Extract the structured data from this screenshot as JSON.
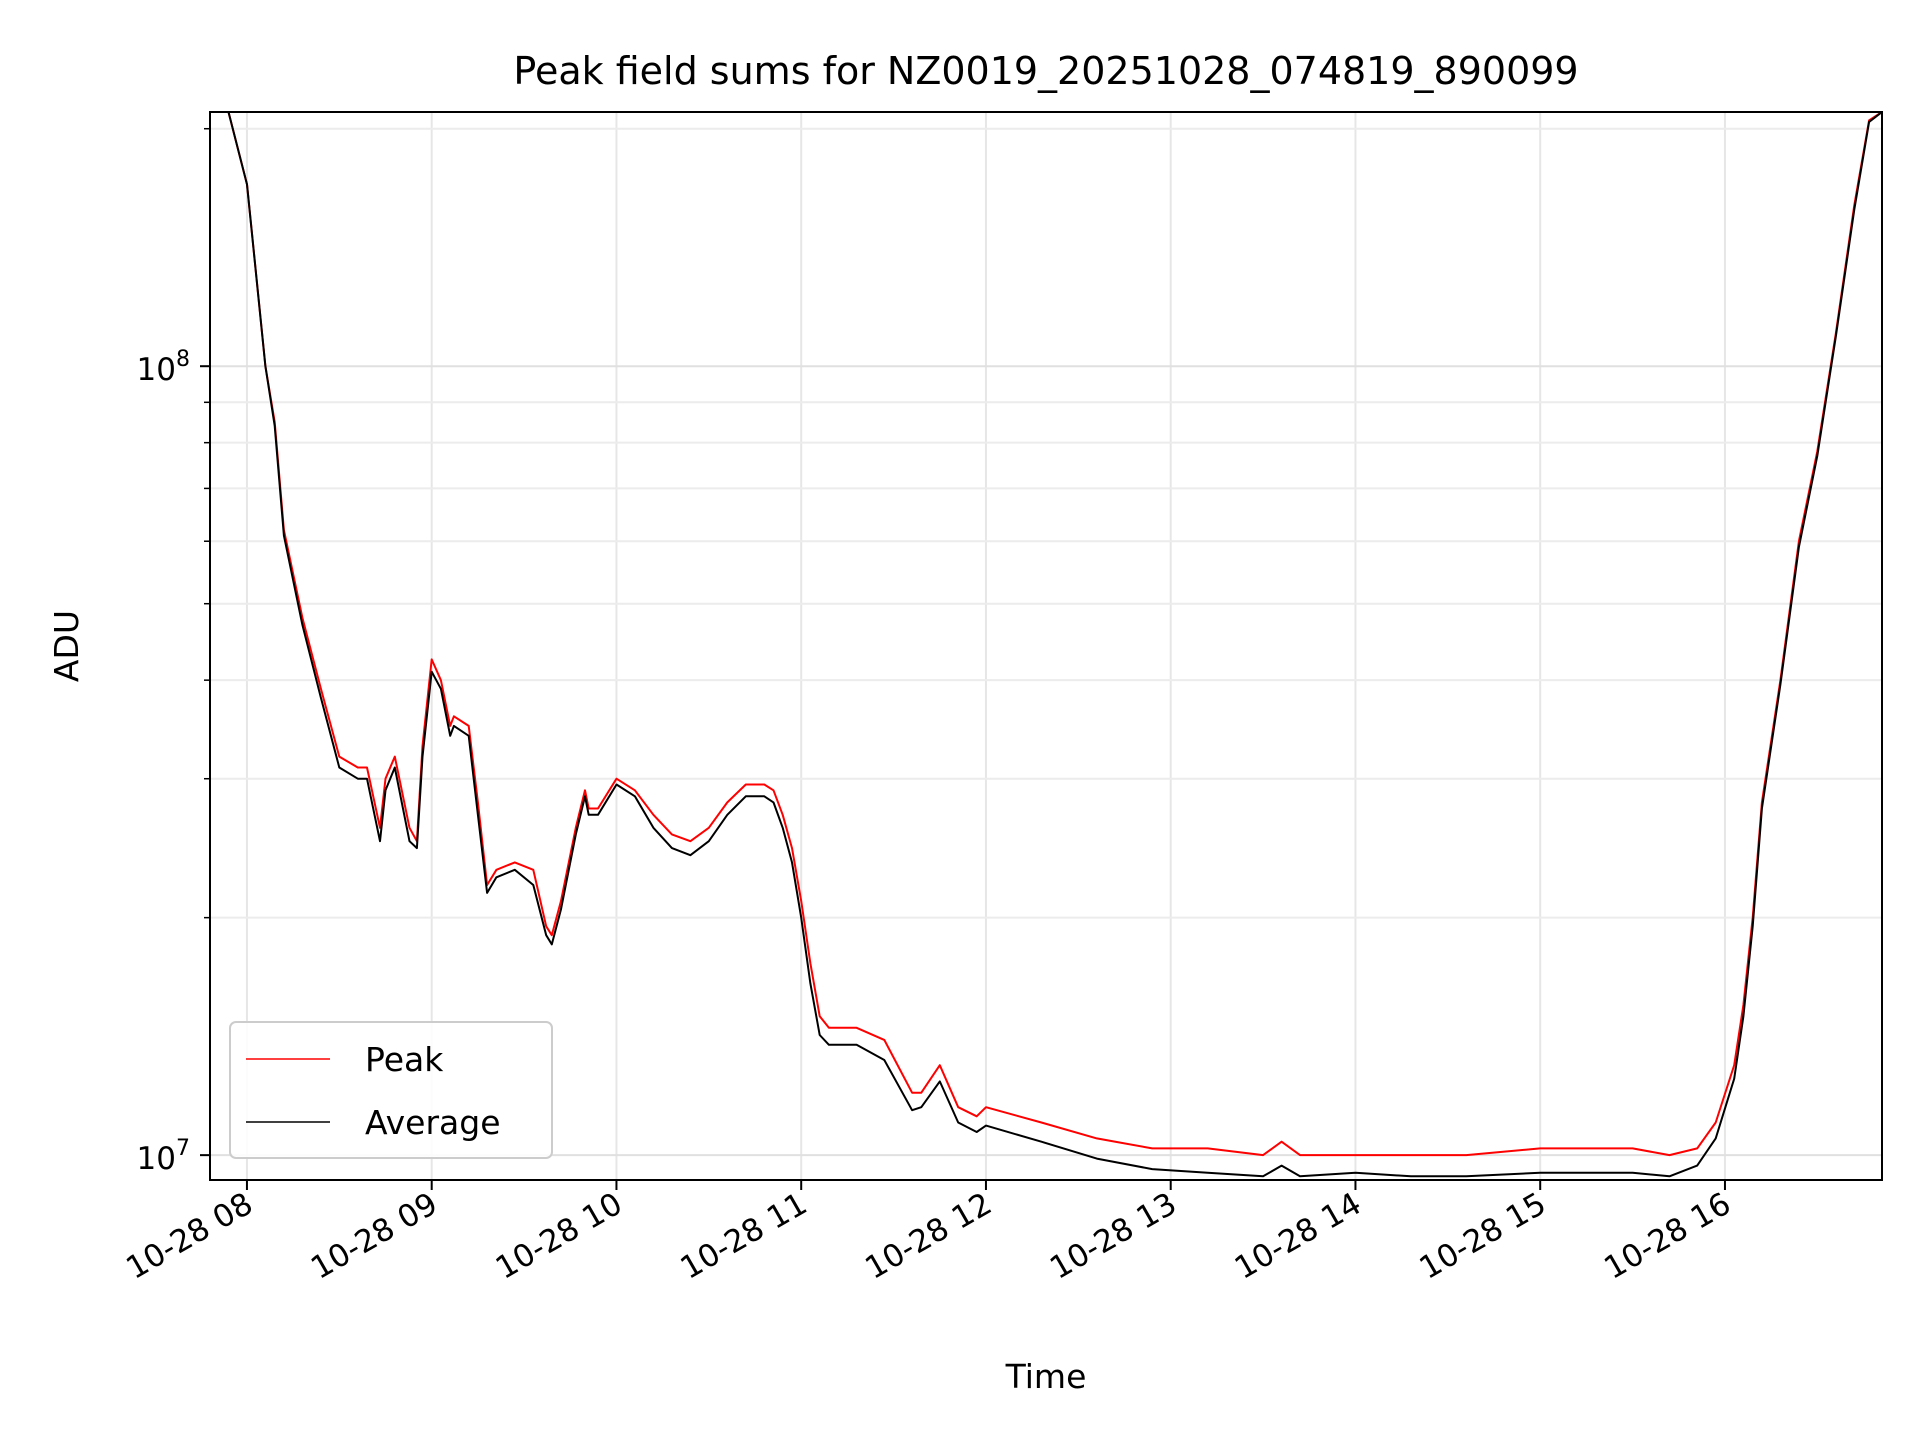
{
  "chart_data": {
    "type": "line",
    "title": "Peak field sums for NZ0019_20251028_074819_890099",
    "xlabel": "Time",
    "ylabel": "ADU",
    "yscale": "log",
    "ylim": [
      9300000.0,
      210000000.0
    ],
    "xlim_hours": [
      7.8,
      16.85
    ],
    "grid": true,
    "legend_position": "lower-left",
    "x_ticks": [
      {
        "hour": 8,
        "label": "10-28 08"
      },
      {
        "hour": 9,
        "label": "10-28 09"
      },
      {
        "hour": 10,
        "label": "10-28 10"
      },
      {
        "hour": 11,
        "label": "10-28 11"
      },
      {
        "hour": 12,
        "label": "10-28 12"
      },
      {
        "hour": 13,
        "label": "10-28 13"
      },
      {
        "hour": 14,
        "label": "10-28 14"
      },
      {
        "hour": 15,
        "label": "10-28 15"
      },
      {
        "hour": 16,
        "label": "10-28 16"
      }
    ],
    "y_major_ticks": [
      {
        "value": 10000000.0,
        "base": "10",
        "exp": "7"
      },
      {
        "value": 100000000.0,
        "base": "10",
        "exp": "8"
      }
    ],
    "x_hours": [
      7.8,
      7.9,
      8.0,
      8.1,
      8.15,
      8.2,
      8.3,
      8.4,
      8.5,
      8.6,
      8.65,
      8.72,
      8.75,
      8.8,
      8.88,
      8.92,
      8.95,
      9.0,
      9.05,
      9.1,
      9.12,
      9.2,
      9.25,
      9.3,
      9.35,
      9.45,
      9.55,
      9.62,
      9.65,
      9.7,
      9.78,
      9.83,
      9.85,
      9.9,
      10.0,
      10.1,
      10.2,
      10.3,
      10.4,
      10.5,
      10.6,
      10.7,
      10.8,
      10.85,
      10.9,
      10.95,
      11.0,
      11.05,
      11.1,
      11.15,
      11.3,
      11.45,
      11.6,
      11.65,
      11.75,
      11.85,
      11.95,
      12.0,
      12.3,
      12.6,
      12.9,
      13.2,
      13.5,
      13.6,
      13.7,
      14.0,
      14.3,
      14.6,
      15.0,
      15.3,
      15.5,
      15.7,
      15.85,
      15.95,
      16.05,
      16.1,
      16.15,
      16.2,
      16.3,
      16.4,
      16.5,
      16.6,
      16.7,
      16.78,
      16.85
    ],
    "series": [
      {
        "name": "Peak",
        "color": "#ff0000",
        "values": [
          210000000.0,
          210000000.0,
          170000000.0,
          100000000.0,
          85000000.0,
          62000000.0,
          48000000.0,
          39000000.0,
          32000000.0,
          31000000.0,
          31000000.0,
          26000000.0,
          30000000.0,
          32000000.0,
          26000000.0,
          25000000.0,
          33000000.0,
          42500000.0,
          40000000.0,
          35000000.0,
          36000000.0,
          35000000.0,
          28000000.0,
          22000000.0,
          23000000.0,
          23500000.0,
          23000000.0,
          19500000.0,
          19000000.0,
          21000000.0,
          26000000.0,
          29000000.0,
          27500000.0,
          27500000.0,
          30000000.0,
          29000000.0,
          27000000.0,
          25500000.0,
          25000000.0,
          26000000.0,
          28000000.0,
          29500000.0,
          29500000.0,
          29000000.0,
          27000000.0,
          24500000.0,
          21000000.0,
          17500000.0,
          15000000.0,
          14500000.0,
          14500000.0,
          14000000.0,
          12000000.0,
          12000000.0,
          13000000.0,
          11500000.0,
          11200000.0,
          11500000.0,
          11000000.0,
          10500000.0,
          10200000.0,
          10200000.0,
          10000000.0,
          10400000.0,
          10000000.0,
          10000000.0,
          10000000.0,
          10000000.0,
          10200000.0,
          10200000.0,
          10200000.0,
          10000000.0,
          10200000.0,
          11000000.0,
          13000000.0,
          15500000.0,
          20000000.0,
          28000000.0,
          40000000.0,
          60000000.0,
          78000000.0,
          110000000.0,
          160000000.0,
          205000000.0,
          210000000.0
        ]
      },
      {
        "name": "Average",
        "color": "#000000",
        "values": [
          210000000.0,
          210000000.0,
          170000000.0,
          100000000.0,
          84000000.0,
          61000000.0,
          47000000.0,
          38000000.0,
          31000000.0,
          30000000.0,
          30000000.0,
          25000000.0,
          29000000.0,
          31000000.0,
          25000000.0,
          24500000.0,
          32000000.0,
          41000000.0,
          39000000.0,
          34000000.0,
          35000000.0,
          34000000.0,
          27000000.0,
          21500000.0,
          22500000.0,
          23000000.0,
          22000000.0,
          19000000.0,
          18500000.0,
          20500000.0,
          25500000.0,
          28500000.0,
          27000000.0,
          27000000.0,
          29500000.0,
          28500000.0,
          26000000.0,
          24500000.0,
          24000000.0,
          25000000.0,
          27000000.0,
          28500000.0,
          28500000.0,
          28000000.0,
          26000000.0,
          23500000.0,
          20000000.0,
          16500000.0,
          14200000.0,
          13800000.0,
          13800000.0,
          13200000.0,
          11400000.0,
          11500000.0,
          12400000.0,
          11000000.0,
          10700000.0,
          10900000.0,
          10400000.0,
          9900000.0,
          9600000.0,
          9500000.0,
          9400000.0,
          9700000.0,
          9400000.0,
          9500000.0,
          9400000.0,
          9400000.0,
          9500000.0,
          9500000.0,
          9500000.0,
          9400000.0,
          9700000.0,
          10500000.0,
          12500000.0,
          15000000.0,
          19500000.0,
          27500000.0,
          39500000.0,
          59000000.0,
          77000000.0,
          109000000.0,
          158000000.0,
          204000000.0,
          210000000.0
        ]
      }
    ]
  }
}
